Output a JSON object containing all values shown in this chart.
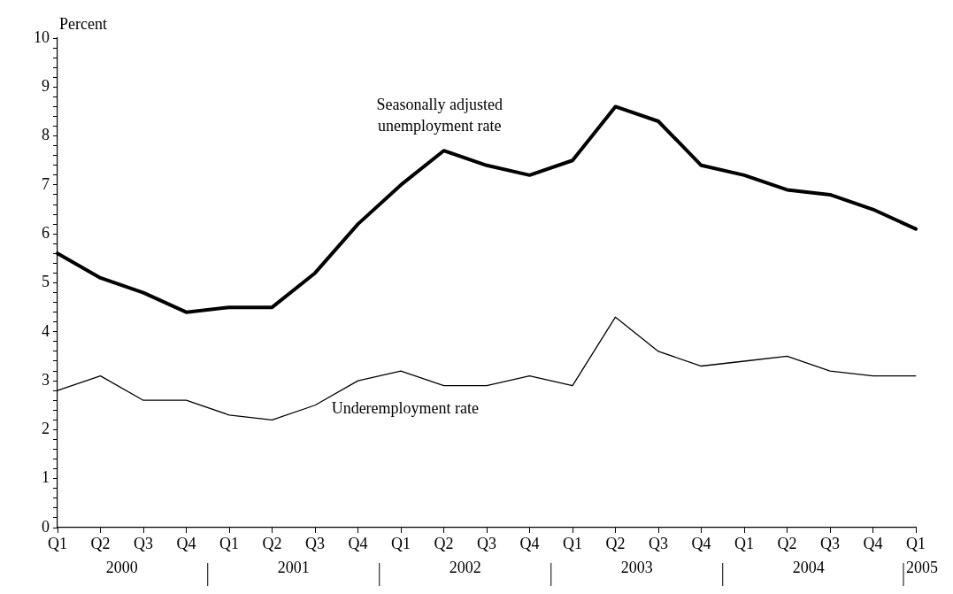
{
  "chart_data": {
    "type": "line",
    "ylabel": "Percent",
    "categories": [
      "Q1",
      "Q2",
      "Q3",
      "Q4",
      "Q1",
      "Q2",
      "Q3",
      "Q4",
      "Q1",
      "Q2",
      "Q3",
      "Q4",
      "Q1",
      "Q2",
      "Q3",
      "Q4",
      "Q1",
      "Q2",
      "Q3",
      "Q4",
      "Q1"
    ],
    "series": [
      {
        "name": "Seasonally adjusted unemployment rate",
        "color": "#000000",
        "values": [
          5.6,
          5.1,
          4.8,
          4.4,
          4.5,
          4.5,
          5.2,
          6.2,
          7.0,
          7.7,
          7.4,
          7.2,
          7.5,
          8.6,
          8.3,
          7.4,
          7.2,
          6.9,
          6.8,
          6.5,
          6.1
        ]
      },
      {
        "name": "Underemployment rate",
        "color": "#000000",
        "values": [
          2.8,
          3.1,
          2.6,
          2.6,
          2.3,
          2.2,
          2.5,
          3.0,
          3.2,
          2.9,
          2.9,
          3.1,
          2.9,
          4.3,
          3.6,
          3.3,
          3.4,
          3.5,
          3.2,
          3.1,
          3.1
        ]
      }
    ],
    "ylim": [
      0,
      10
    ],
    "yticks": [
      0,
      {
        "value": 0.2,
        "label": null
      },
      {
        "value": 0.4,
        "label": null
      },
      {
        "value": 0.6,
        "label": null
      },
      {
        "value": 0.8,
        "label": null
      },
      1,
      {
        "value": 1.2,
        "label": null
      },
      {
        "value": 1.4,
        "label": null
      },
      {
        "value": 1.6,
        "label": null
      },
      {
        "value": 1.8,
        "label": null
      },
      2,
      {
        "value": 2.2,
        "label": null
      },
      {
        "value": 2.4,
        "label": null
      },
      {
        "value": 2.6,
        "label": null
      },
      {
        "value": 2.8,
        "label": null
      },
      3,
      {
        "value": 3.2,
        "label": null
      },
      {
        "value": 3.4,
        "label": null
      },
      {
        "value": 3.6,
        "label": null
      },
      {
        "value": 3.8,
        "label": null
      },
      4,
      {
        "value": 4.2,
        "label": null
      },
      {
        "value": 4.4,
        "label": null
      },
      {
        "value": 4.6,
        "label": null
      },
      {
        "value": 4.8,
        "label": null
      },
      5,
      {
        "value": 5.2,
        "label": null
      },
      {
        "value": 5.4,
        "label": null
      },
      {
        "value": 5.6,
        "label": null
      },
      {
        "value": 5.8,
        "label": null
      },
      6,
      {
        "value": 6.2,
        "label": null
      },
      {
        "value": 6.4,
        "label": null
      },
      {
        "value": 6.6,
        "label": null
      },
      {
        "value": 6.8,
        "label": null
      },
      7,
      {
        "value": 7.2,
        "label": null
      },
      {
        "value": 7.4,
        "label": null
      },
      {
        "value": 7.6,
        "label": null
      },
      {
        "value": 7.8,
        "label": null
      },
      8,
      {
        "value": 8.2,
        "label": null
      },
      {
        "value": 8.4,
        "label": null
      },
      {
        "value": 8.6,
        "label": null
      },
      {
        "value": 8.8,
        "label": null
      },
      9,
      {
        "value": 9.2,
        "label": null
      },
      {
        "value": 9.4,
        "label": null
      },
      {
        "value": 9.6,
        "label": null
      },
      {
        "value": 9.8,
        "label": null
      },
      10
    ],
    "annotations": [
      "2000",
      "2001",
      "2002",
      "2003",
      "2004",
      "2005"
    ],
    "grid": false,
    "legend": false,
    "marker": "none",
    "line_style": "solid"
  }
}
